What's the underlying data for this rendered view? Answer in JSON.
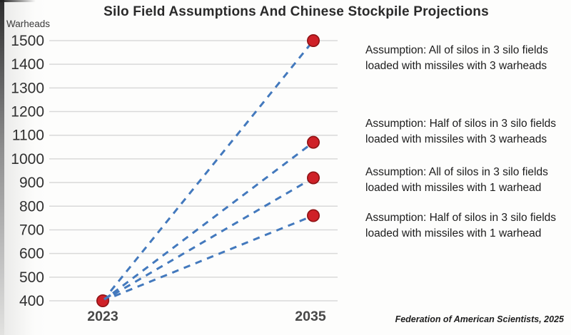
{
  "chart_data": {
    "type": "line",
    "title": "Silo Field Assumptions And Chinese Stockpile Projections",
    "y_axis_title": "Warheads",
    "attribution": "Federation of American Scientists, 2025",
    "x": [
      2023,
      2035
    ],
    "x_tick_labels": [
      "2023",
      "2035"
    ],
    "y_ticks": [
      400,
      500,
      600,
      700,
      800,
      900,
      1000,
      1100,
      1200,
      1300,
      1400,
      1500
    ],
    "ylim": [
      400,
      1500
    ],
    "grid": true,
    "legend_position": "right-annotations",
    "line_style": "dashed",
    "line_color": "#4379bd",
    "marker_color": "#cf2128",
    "marker_edge_color": "#8e1315",
    "gridline_color": "#d9d9d9",
    "series": [
      {
        "name": "All of silos in 3 silo fields loaded with missiles with 3 warheads",
        "values": [
          400,
          1500
        ]
      },
      {
        "name": "Half of silos in 3 silo fields loaded with missiles with 3 warheads",
        "values": [
          400,
          1070
        ]
      },
      {
        "name": "All of silos in 3 silo fields loaded with missiles with 1 warhead",
        "values": [
          400,
          920
        ]
      },
      {
        "name": "Half of silos in 3 silo fields loaded with missiles with 1 warhead",
        "values": [
          400,
          760
        ]
      }
    ],
    "annotations": [
      {
        "line1": "Assumption: All of silos in 3 silo fields",
        "line2": "loaded with missiles with 3 warheads",
        "anchor_value": 1500
      },
      {
        "line1": "Assumption: Half of silos in 3 silo fields",
        "line2": "loaded with missiles with 3 warheads",
        "anchor_value": 1070
      },
      {
        "line1": "Assumption: All of silos in 3 silo fields",
        "line2": "loaded with missiles with 1 warhead",
        "anchor_value": 920
      },
      {
        "line1": "Assumption: Half of silos in 3 silo fields",
        "line2": "loaded with missiles with 1 warhead",
        "anchor_value": 760
      }
    ]
  }
}
